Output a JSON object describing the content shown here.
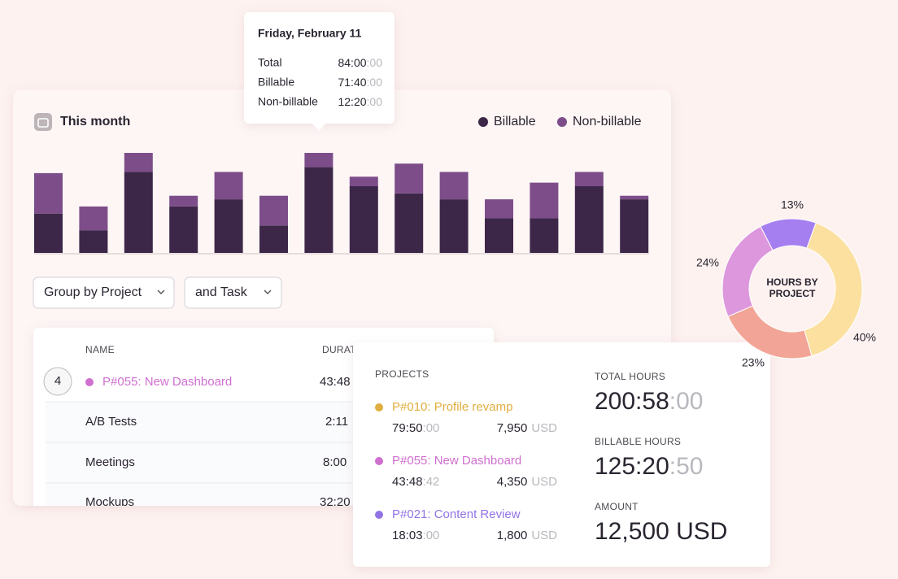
{
  "tooltip": {
    "date": "Friday, February 11",
    "rows": [
      {
        "label": "Total",
        "time": "84:00",
        "seconds": ":00"
      },
      {
        "label": "Billable",
        "time": "71:40",
        "seconds": ":00"
      },
      {
        "label": "Non-billable",
        "time": "12:20",
        "seconds": ":00"
      }
    ]
  },
  "chart_data": [
    {
      "type": "bar",
      "stacked": true,
      "title": "This month",
      "categories": [
        null,
        null,
        null,
        null,
        null,
        null,
        null,
        null,
        null,
        null,
        null,
        null,
        null,
        null
      ],
      "series": [
        {
          "name": "Billable",
          "color": "#3d2748",
          "values": [
            33,
            19,
            68,
            39,
            45,
            23,
            72,
            56,
            50,
            45,
            29,
            29,
            56,
            45
          ]
        },
        {
          "name": "Non-billable",
          "color": "#7d4d8a",
          "values": [
            34,
            20,
            16,
            9,
            23,
            25,
            12,
            8,
            25,
            23,
            16,
            30,
            12,
            3
          ]
        }
      ],
      "ylim": [
        0,
        84
      ],
      "legend": "top-right"
    },
    {
      "type": "pie",
      "title": "HOURS BY PROJECT",
      "values": [
        13,
        40,
        23,
        24
      ],
      "value_labels": [
        "13%",
        "40%",
        "23%",
        "24%"
      ],
      "colors": [
        "#a57ff0",
        "#fbe0a0",
        "#f2a596",
        "#dd97dd"
      ]
    }
  ],
  "filters": [
    "Group by Project",
    "and Task"
  ],
  "table": {
    "columns": [
      "NAME",
      "DURATION"
    ],
    "rows": [
      {
        "badge": "4",
        "name": "P#055: New Dashboard",
        "duration": "43:48",
        "color": "#cf6fcf"
      },
      {
        "name": "A/B Tests",
        "duration": "2:11"
      },
      {
        "name": "Meetings",
        "duration": "8:00"
      },
      {
        "name": "Mockups",
        "duration": "32:20"
      }
    ]
  },
  "summary": {
    "projects_label": "PROJECTS",
    "projects": [
      {
        "name": "P#010: Profile revamp",
        "color": "#e0ae3e",
        "time": "79:50",
        "seconds": ":00",
        "amount": "7,950",
        "currency": "USD"
      },
      {
        "name": "P#055: New Dashboard",
        "color": "#cf6fcf",
        "time": "43:48",
        "seconds": ":42",
        "amount": "4,350",
        "currency": "USD"
      },
      {
        "name": "P#021: Content Review",
        "color": "#9273e6",
        "time": "18:03",
        "seconds": ":00",
        "amount": "1,800",
        "currency": "USD"
      }
    ],
    "total_label": "TOTAL HOURS",
    "total_time": "200:58",
    "total_seconds": ":00",
    "billable_label": "BILLABLE HOURS",
    "billable_time": "125:20",
    "billable_seconds": ":50",
    "amount_label": "AMOUNT",
    "amount": "12,500 USD"
  }
}
